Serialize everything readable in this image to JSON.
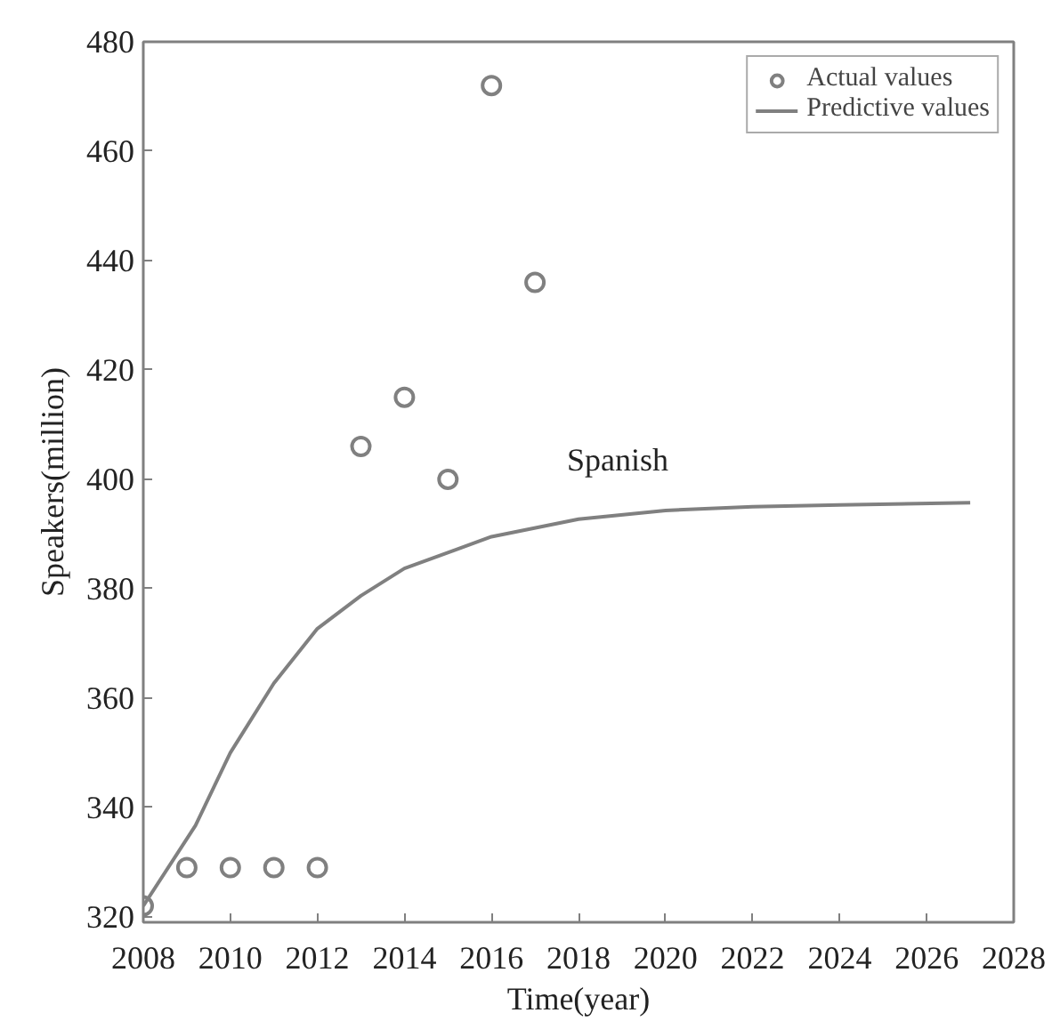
{
  "chart_data": {
    "type": "scatter",
    "xlabel": "Time(year)",
    "ylabel": "Speakers(million)",
    "xlim": [
      2008,
      2028
    ],
    "xticks": [
      2008,
      2010,
      2012,
      2014,
      2016,
      2018,
      2020,
      2022,
      2024,
      2026,
      2028
    ],
    "ylim": [
      319,
      480
    ],
    "yticks": [
      320,
      340,
      360,
      380,
      400,
      420,
      440,
      460,
      480
    ],
    "series": [
      {
        "name": "Actual values",
        "color": "#808080",
        "marker": "circle",
        "x": [
          2008,
          2009,
          2010,
          2011,
          2012,
          2013,
          2014,
          2015,
          2016,
          2017
        ],
        "values": [
          322,
          329,
          329,
          329,
          329,
          406,
          415,
          400,
          472,
          436
        ]
      },
      {
        "name": "Predictive values",
        "type": "line",
        "color": "#808080",
        "line_style": "solid",
        "x": [
          2008,
          2009.2,
          2010,
          2011,
          2012,
          2013,
          2014,
          2016,
          2018,
          2020,
          2022,
          2024,
          2027
        ],
        "values": [
          322,
          336.7,
          350,
          362.7,
          372.7,
          378.7,
          383.7,
          389.5,
          392.7,
          394.3,
          395,
          395.3,
          395.7
        ]
      }
    ],
    "annotations": [
      "Spanish"
    ],
    "legend": "top right",
    "grid": false
  }
}
